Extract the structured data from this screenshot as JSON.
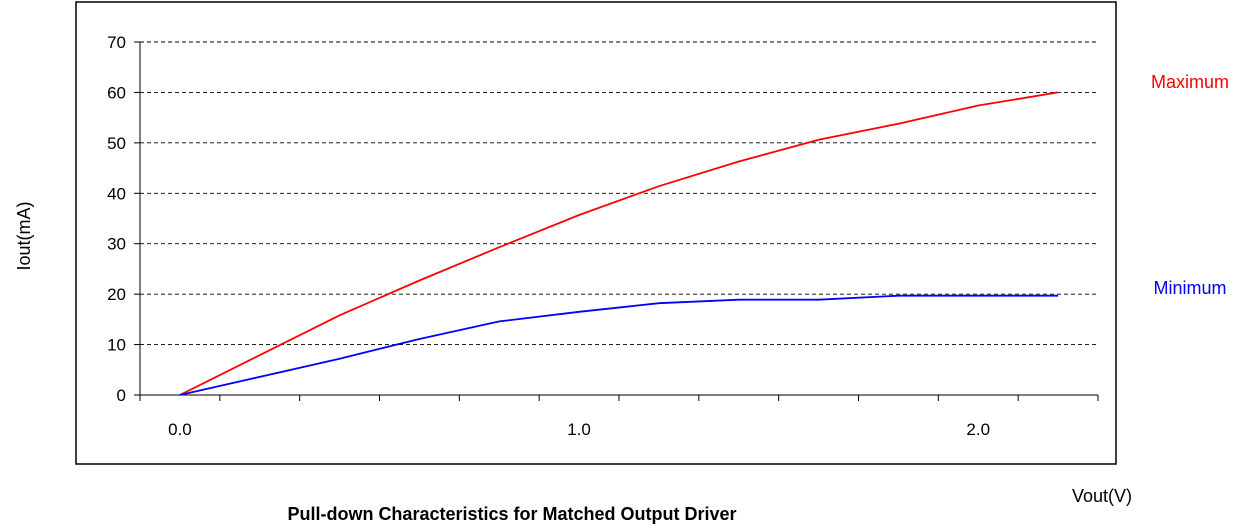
{
  "chart_data": {
    "type": "line",
    "title": "Pull-down Characteristics for Matched Output Driver",
    "xlabel": "Vout(V)",
    "ylabel": "Iout(mA)",
    "xlim": [
      -0.1,
      2.3
    ],
    "ylim": [
      0,
      70
    ],
    "x_ticks": [
      0.0,
      1.0,
      2.0
    ],
    "x_tick_labels": [
      "0.0",
      "1.0",
      "2.0"
    ],
    "x_minor_step": 0.2,
    "y_ticks": [
      0,
      10,
      20,
      30,
      40,
      50,
      60,
      70
    ],
    "y_tick_labels": [
      "0",
      "10",
      "20",
      "30",
      "40",
      "50",
      "60",
      "70"
    ],
    "grid": "horizontal-dashed",
    "legend_placement": "right",
    "series": [
      {
        "name": "Maximum",
        "color": "#ff0000",
        "x": [
          0.0,
          0.4,
          0.6,
          0.8,
          1.0,
          1.2,
          1.4,
          1.6,
          1.8,
          2.0,
          2.2
        ],
        "y": [
          0,
          15.8,
          22.7,
          29.3,
          35.7,
          41.4,
          46.3,
          50.6,
          53.8,
          57.4,
          60.0
        ]
      },
      {
        "name": "Minimum",
        "color": "#0000ff",
        "x": [
          0.0,
          0.4,
          0.6,
          0.8,
          1.0,
          1.2,
          1.4,
          1.6,
          1.8,
          2.0,
          2.2
        ],
        "y": [
          0,
          7.2,
          11.1,
          14.6,
          16.5,
          18.2,
          18.9,
          18.9,
          19.7,
          19.7,
          19.7
        ]
      }
    ]
  }
}
